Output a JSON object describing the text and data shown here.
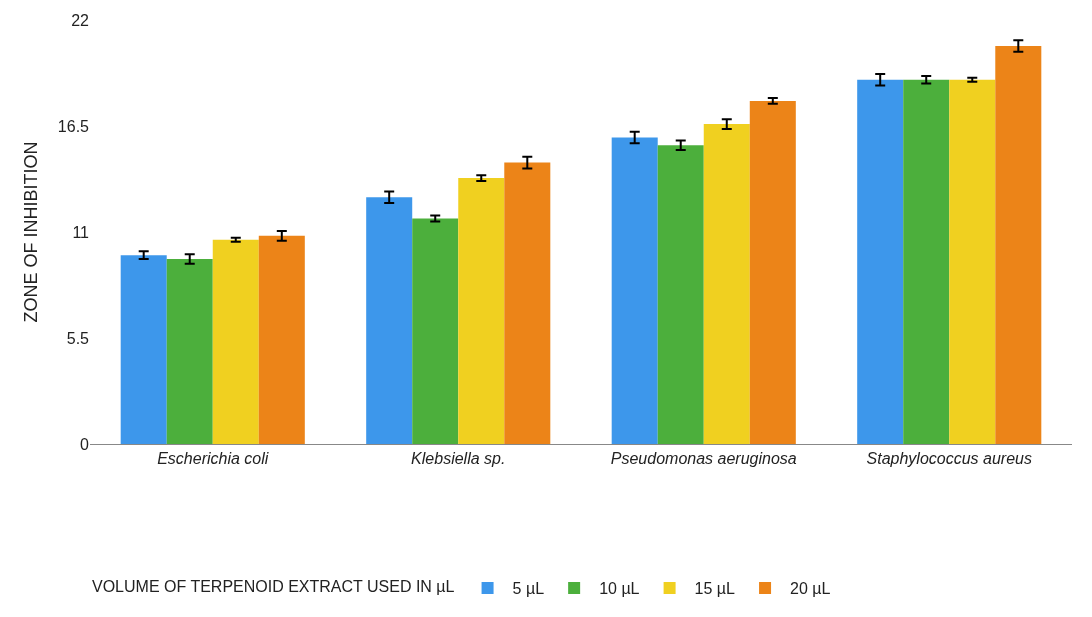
{
  "chart_data": {
    "type": "bar",
    "ylabel": "ZONE OF INHIBITION",
    "legend_title": "VOLUME OF TERPENOID EXTRACT USED IN µL",
    "categories": [
      "Escherichia coli",
      "Klebsiella sp.",
      "Pseudomonas aeruginosa",
      "Staphylococcus aureus"
    ],
    "ylim": [
      0,
      22
    ],
    "yticks": [
      0,
      5.5,
      11,
      16.5,
      22
    ],
    "legend": "bottom",
    "series": [
      {
        "name": "5 µL",
        "color": "#3d97eb",
        "values": [
          9.8,
          12.8,
          15.9,
          18.9
        ],
        "errors": [
          0.2,
          0.3,
          0.3,
          0.3
        ]
      },
      {
        "name": "10 µL",
        "color": "#4caf3c",
        "values": [
          9.6,
          11.7,
          15.5,
          18.9
        ],
        "errors": [
          0.25,
          0.15,
          0.25,
          0.2
        ]
      },
      {
        "name": "15 µL",
        "color": "#f0d020",
        "values": [
          10.6,
          13.8,
          16.6,
          18.9
        ],
        "errors": [
          0.1,
          0.15,
          0.25,
          0.1
        ]
      },
      {
        "name": "20 µL",
        "color": "#ec8418",
        "values": [
          10.8,
          14.6,
          17.8,
          20.65
        ],
        "errors": [
          0.25,
          0.3,
          0.15,
          0.3
        ]
      }
    ]
  }
}
